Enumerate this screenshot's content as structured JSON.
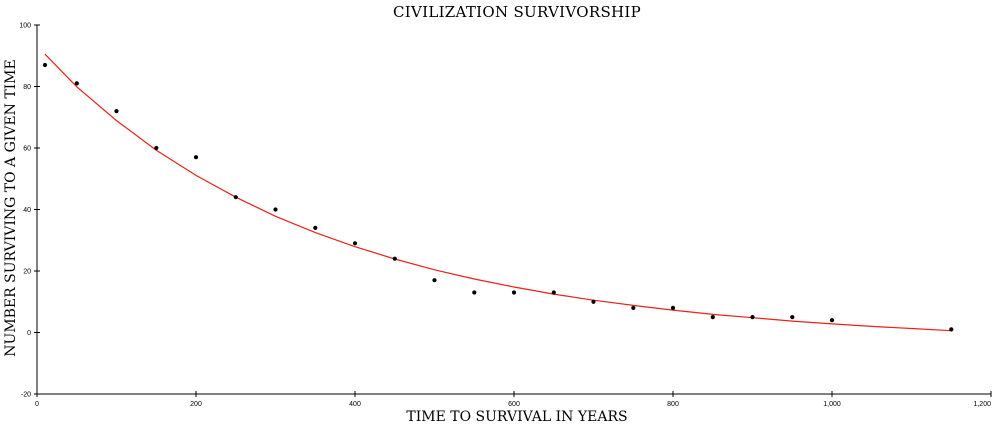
{
  "chart_data": {
    "type": "scatter",
    "title": "CIVILIZATION SURVIVORSHIP",
    "xlabel": "TIME TO SURVIVAL IN YEARS",
    "ylabel": "NUMBER SURVIVING TO A GIVEN TIME",
    "xlim": [
      0,
      1200
    ],
    "ylim": [
      -20,
      100
    ],
    "x_ticks": [
      {
        "value": 0,
        "label": "0"
      },
      {
        "value": 200,
        "label": "200"
      },
      {
        "value": 400,
        "label": "400"
      },
      {
        "value": 600,
        "label": "600"
      },
      {
        "value": 800,
        "label": "800"
      },
      {
        "value": 1000,
        "label": "1,000"
      },
      {
        "value": 1200,
        "label": "1,200"
      }
    ],
    "y_ticks": [
      {
        "value": -20,
        "label": "-20"
      },
      {
        "value": 0,
        "label": "0"
      },
      {
        "value": 20,
        "label": "20"
      },
      {
        "value": 40,
        "label": "40"
      },
      {
        "value": 60,
        "label": "60"
      },
      {
        "value": 80,
        "label": "80"
      },
      {
        "value": 100,
        "label": "100"
      }
    ],
    "grid": false,
    "series": [
      {
        "type": "scatter",
        "color": "#000000",
        "x": [
          10,
          50,
          100,
          150,
          200,
          250,
          300,
          350,
          400,
          450,
          500,
          550,
          600,
          650,
          700,
          750,
          800,
          850,
          900,
          950,
          1000,
          1150
        ],
        "y": [
          87,
          81,
          72,
          60,
          57,
          44,
          40,
          34,
          29,
          24,
          17,
          13,
          13,
          13,
          10,
          8,
          8,
          5,
          5,
          5,
          4,
          1
        ]
      },
      {
        "type": "line",
        "color": "#e8221b",
        "x": [
          10,
          50,
          100,
          150,
          200,
          250,
          300,
          350,
          400,
          450,
          500,
          550,
          600,
          650,
          700,
          750,
          800,
          850,
          900,
          950,
          1000,
          1050,
          1100,
          1150
        ],
        "y": [
          90.5,
          79.9,
          68.9,
          59.3,
          51.1,
          44.0,
          37.8,
          32.5,
          27.9,
          23.9,
          20.4,
          17.4,
          14.8,
          12.5,
          10.5,
          8.8,
          7.3,
          5.9,
          4.8,
          3.7,
          2.8,
          2.0,
          1.3,
          0.6
        ]
      }
    ]
  }
}
